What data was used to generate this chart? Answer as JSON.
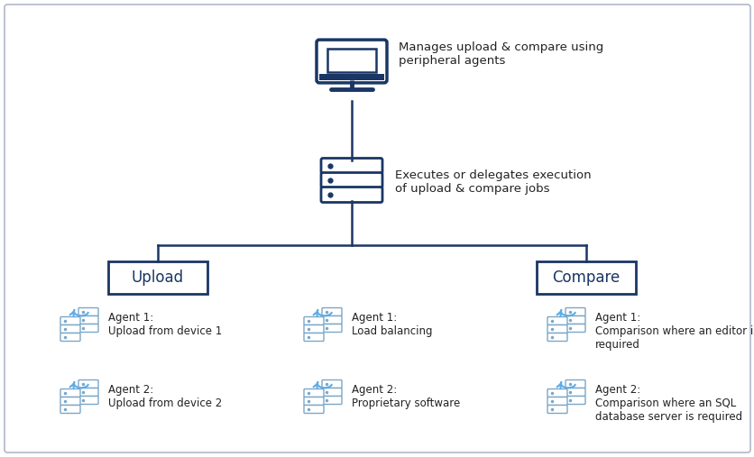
{
  "bg_color": "#ffffff",
  "border_color": "#b0b8c8",
  "line_color": "#1a3665",
  "text_color": "#1a3665",
  "label_text_color": "#222222",
  "agent_icon_color": "#5aace8",
  "agent_server_color": "#7ba7c8",
  "monitor_label": "Manages upload & compare using\nperipheral agents",
  "server_label": "Executes or delegates execution\nof upload & compare jobs",
  "upload_box_label": "Upload",
  "compare_box_label": "Compare",
  "agents": [
    {
      "col": 0,
      "row": 0,
      "line1": "Agent 1:",
      "line2": "Upload from device 1"
    },
    {
      "col": 0,
      "row": 1,
      "line1": "Agent 2:",
      "line2": "Upload from device 2"
    },
    {
      "col": 1,
      "row": 0,
      "line1": "Agent 1:",
      "line2": "Load balancing"
    },
    {
      "col": 1,
      "row": 1,
      "line1": "Agent 2:",
      "line2": "Proprietary software"
    },
    {
      "col": 2,
      "row": 0,
      "line1": "Agent 1:",
      "line2": "Comparison where an editor is\nrequired"
    },
    {
      "col": 2,
      "row": 1,
      "line1": "Agent 2:",
      "line2": "Comparison where an SQL\ndatabase server is required"
    }
  ]
}
